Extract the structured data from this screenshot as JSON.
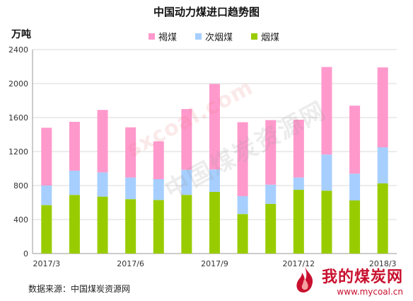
{
  "chart_data": {
    "type": "bar",
    "stacked": true,
    "title": "中国动力煤进口趋势图",
    "unit_label": "万吨",
    "ylim": [
      0,
      2400
    ],
    "yticks": [
      0,
      400,
      800,
      1200,
      1600,
      2000,
      2400
    ],
    "grid": true,
    "legend_position": "top-center",
    "categories": [
      "2017/3",
      "2017/4",
      "2017/5",
      "2017/6",
      "2017/7",
      "2017/8",
      "2017/9",
      "2017/10",
      "2017/11",
      "2017/12",
      "2018/1",
      "2018/2",
      "2018/3"
    ],
    "x_tick_labels": [
      "2017/3",
      "",
      "",
      "2017/6",
      "",
      "",
      "2017/9",
      "",
      "",
      "2017/12",
      "",
      "",
      "2018/3"
    ],
    "series": [
      {
        "name": "烟煤",
        "color": "#99cc00",
        "values": [
          570,
          690,
          670,
          640,
          630,
          690,
          725,
          465,
          585,
          750,
          740,
          625,
          825
        ]
      },
      {
        "name": "次烟煤",
        "color": "#a6cfff",
        "values": [
          230,
          285,
          285,
          255,
          245,
          295,
          265,
          210,
          225,
          145,
          425,
          315,
          425
        ]
      },
      {
        "name": "褐煤",
        "color": "#ff99cc",
        "values": [
          680,
          575,
          735,
          590,
          445,
          715,
          1005,
          870,
          760,
          680,
          1030,
          800,
          940
        ]
      }
    ],
    "legend_order": [
      "褐煤",
      "次烟煤",
      "烟煤"
    ]
  },
  "source_text": "数据来源：中国煤炭资源网",
  "watermark": {
    "stamp": "sxcoal.com",
    "text": "中国煤炭资源网"
  },
  "logo": {
    "name": "我的煤炭网",
    "url": "www.mycoal.cn"
  }
}
